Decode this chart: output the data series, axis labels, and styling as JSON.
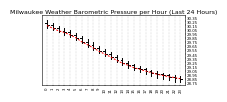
{
  "title": "Milwaukee Weather Barometric Pressure per Hour (Last 24 Hours)",
  "background_color": "#ffffff",
  "grid_color": "#aaaaaa",
  "line_color": "#ff0000",
  "bar_color": "#000000",
  "hours": [
    0,
    1,
    2,
    3,
    4,
    5,
    6,
    7,
    8,
    9,
    10,
    11,
    12,
    13,
    14,
    15,
    16,
    17,
    18,
    19,
    20,
    21,
    22,
    23
  ],
  "open": [
    30.22,
    30.15,
    30.08,
    30.02,
    29.98,
    29.92,
    29.85,
    29.75,
    29.68,
    29.6,
    29.52,
    29.45,
    29.38,
    29.3,
    29.23,
    29.18,
    29.12,
    29.08,
    29.04,
    29.0,
    28.96,
    28.93,
    28.9,
    28.88
  ],
  "high": [
    30.28,
    30.2,
    30.14,
    30.08,
    30.03,
    29.97,
    29.9,
    29.82,
    29.74,
    29.66,
    29.58,
    29.5,
    29.43,
    29.36,
    29.28,
    29.22,
    29.16,
    29.11,
    29.07,
    29.03,
    29.0,
    28.97,
    28.94,
    28.92
  ],
  "low": [
    30.1,
    30.05,
    29.98,
    29.92,
    29.87,
    29.8,
    29.72,
    29.63,
    29.56,
    29.48,
    29.4,
    29.33,
    29.26,
    29.18,
    29.12,
    29.06,
    29.01,
    28.96,
    28.92,
    28.88,
    28.84,
    28.81,
    28.78,
    28.76
  ],
  "close": [
    30.15,
    30.08,
    30.02,
    29.98,
    29.92,
    29.85,
    29.75,
    29.68,
    29.6,
    29.52,
    29.45,
    29.38,
    29.3,
    29.23,
    29.18,
    29.12,
    29.08,
    29.04,
    29.0,
    28.96,
    28.93,
    28.9,
    28.88,
    28.85
  ],
  "ylim_min": 28.7,
  "ylim_max": 30.4,
  "ytick_vals": [
    28.75,
    28.85,
    28.95,
    29.05,
    29.15,
    29.25,
    29.35,
    29.45,
    29.55,
    29.65,
    29.75,
    29.85,
    29.95,
    30.05,
    30.15,
    30.25,
    30.35
  ],
  "ytick_labels": [
    "28.75",
    "28.85",
    "28.95",
    "29.05",
    "29.15",
    "29.25",
    "29.35",
    "29.45",
    "29.55",
    "29.65",
    "29.75",
    "29.85",
    "29.95",
    "30.05",
    "30.15",
    "30.25",
    "30.35"
  ],
  "xtick_labels": [
    "0",
    "1",
    "2",
    "3",
    "4",
    "5",
    "6",
    "7",
    "8",
    "9",
    "10",
    "11",
    "12",
    "13",
    "14",
    "15",
    "16",
    "17",
    "18",
    "19",
    "20",
    "21",
    "22",
    "23"
  ],
  "title_fontsize": 4.5,
  "tick_fontsize": 2.8,
  "bar_width": 0.3,
  "grid_dashes": [
    1.5,
    2.0
  ],
  "grid_lw": 0.3,
  "ohlc_lw": 0.7,
  "line_lw": 0.7,
  "line_dashes": [
    2,
    1.5
  ]
}
